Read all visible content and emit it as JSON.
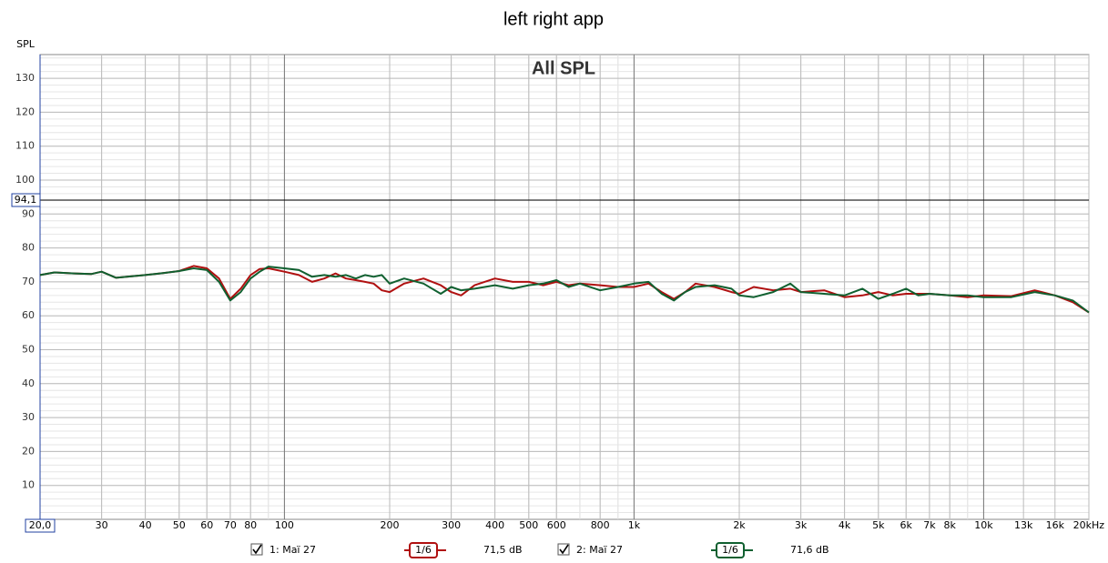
{
  "chart_data": {
    "type": "line",
    "title": "left right app",
    "subtitle": "All SPL",
    "y_label": "SPL",
    "log_x": true,
    "grid": true,
    "xlim": [
      20,
      20000
    ],
    "ylim": [
      0,
      137
    ],
    "xticks": [
      30,
      40,
      50,
      60,
      70,
      80,
      {
        "value": 100,
        "label": "100"
      },
      200,
      300,
      400,
      500,
      600,
      800,
      {
        "value": 1000,
        "label": "1k"
      },
      {
        "value": 2000,
        "label": "2k"
      },
      {
        "value": 3000,
        "label": "3k"
      },
      {
        "value": 4000,
        "label": "4k"
      },
      {
        "value": 5000,
        "label": "5k"
      },
      {
        "value": 6000,
        "label": "6k"
      },
      {
        "value": 7000,
        "label": "7k"
      },
      {
        "value": 8000,
        "label": "8k"
      },
      {
        "value": 10000,
        "label": "10k"
      },
      {
        "value": 13000,
        "label": "13k"
      },
      {
        "value": 16000,
        "label": "16k"
      },
      {
        "value": 20000,
        "label": "20kHz"
      }
    ],
    "yticks": [
      10,
      20,
      30,
      40,
      50,
      60,
      70,
      80,
      90,
      100,
      110,
      120,
      130
    ],
    "cursor": {
      "x": {
        "value": 20,
        "label": "20,0"
      },
      "y": {
        "value": 94.1,
        "label": "94,1"
      }
    },
    "x": [
      20,
      22,
      25,
      28,
      30,
      33,
      40,
      45,
      50,
      55,
      60,
      65,
      70,
      75,
      80,
      85,
      90,
      100,
      110,
      120,
      130,
      140,
      150,
      160,
      170,
      180,
      190,
      200,
      220,
      250,
      280,
      300,
      320,
      350,
      400,
      450,
      500,
      550,
      600,
      650,
      700,
      800,
      900,
      1000,
      1100,
      1200,
      1300,
      1400,
      1500,
      1700,
      1900,
      2000,
      2200,
      2500,
      2800,
      3000,
      3500,
      4000,
      4500,
      5000,
      5500,
      6000,
      6500,
      7000,
      8000,
      9000,
      10000,
      12000,
      14000,
      16000,
      18000,
      20000
    ],
    "series": [
      {
        "name": "1: Maï 27",
        "color": "#b01010",
        "smoothing": "1/6",
        "level": "71,5 dB",
        "values": [
          72,
          72.8,
          72.5,
          72.3,
          73,
          71.2,
          72,
          72.6,
          73.2,
          74.7,
          74,
          71,
          65,
          68,
          72,
          73.8,
          74,
          73,
          72,
          70,
          71,
          72.5,
          71,
          70.5,
          70,
          69.5,
          67.5,
          67,
          69.5,
          71,
          69,
          67,
          66,
          69,
          71,
          70,
          70,
          69,
          70,
          69,
          69.5,
          69,
          68.5,
          68.5,
          69.5,
          67,
          65,
          67,
          69.5,
          68.5,
          67,
          66.5,
          68.5,
          67.5,
          68,
          67,
          67.5,
          65.5,
          66,
          67,
          66,
          66.5,
          66.5,
          66.5,
          66,
          65.5,
          66,
          65.8,
          67.5,
          66,
          64,
          61
        ]
      },
      {
        "name": "2: Maï 27",
        "color": "#106030",
        "smoothing": "1/6",
        "level": "71,6 dB",
        "values": [
          72,
          72.8,
          72.5,
          72.3,
          73,
          71.2,
          72,
          72.6,
          73.2,
          74,
          73.5,
          70,
          64.5,
          67,
          71,
          73,
          74.5,
          74,
          73.5,
          71.5,
          72,
          71.5,
          72,
          71,
          72,
          71.5,
          72,
          69.5,
          71,
          69.5,
          66.5,
          68.5,
          67.5,
          68,
          69,
          68,
          69,
          69.5,
          70.5,
          68.5,
          69.5,
          67.5,
          68.5,
          69.5,
          70,
          66.5,
          64.5,
          67,
          68.5,
          69,
          68,
          66,
          65.5,
          67,
          69.5,
          67,
          66.5,
          66,
          68,
          65,
          66.5,
          68,
          66,
          66.5,
          66,
          66,
          65.5,
          65.5,
          67,
          66,
          64.5,
          61
        ]
      }
    ]
  }
}
